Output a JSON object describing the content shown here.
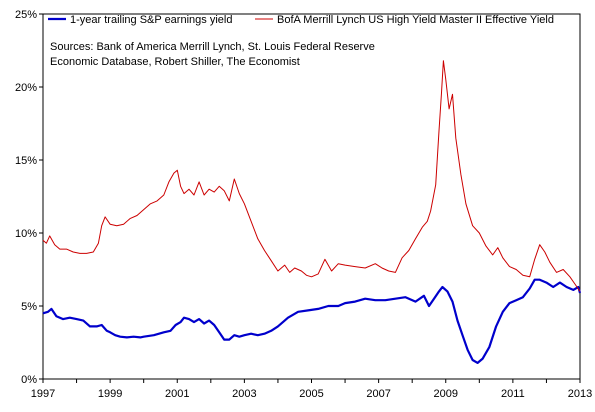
{
  "chart_data": {
    "type": "line",
    "title": "",
    "xlabel": "",
    "ylabel": "",
    "xlim": [
      1997,
      2013
    ],
    "ylim": [
      0,
      25
    ],
    "grid": false,
    "legend_position": "top",
    "x_ticks": [
      "1997",
      "1999",
      "2001",
      "2003",
      "2005",
      "2007",
      "2009",
      "2011",
      "2013"
    ],
    "y_ticks": [
      "0%",
      "5%",
      "10%",
      "15%",
      "20%",
      "25%"
    ],
    "annotation": [
      "Sources: Bank of America Merrill Lynch, St. Louis Federal Reserve",
      "Economic Database, Robert Shiller, The Economist"
    ],
    "series": [
      {
        "name": "1-year trailing S&P earnings yield",
        "color": "#0000cc",
        "points": [
          [
            1997.0,
            4.5
          ],
          [
            1997.15,
            4.6
          ],
          [
            1997.25,
            4.8
          ],
          [
            1997.4,
            4.3
          ],
          [
            1997.6,
            4.1
          ],
          [
            1997.8,
            4.2
          ],
          [
            1998.0,
            4.1
          ],
          [
            1998.2,
            4.0
          ],
          [
            1998.4,
            3.6
          ],
          [
            1998.6,
            3.6
          ],
          [
            1998.75,
            3.7
          ],
          [
            1998.9,
            3.3
          ],
          [
            1999.0,
            3.2
          ],
          [
            1999.15,
            3.0
          ],
          [
            1999.3,
            2.9
          ],
          [
            1999.5,
            2.85
          ],
          [
            1999.7,
            2.9
          ],
          [
            1999.9,
            2.85
          ],
          [
            2000.0,
            2.9
          ],
          [
            2000.3,
            3.0
          ],
          [
            2000.6,
            3.2
          ],
          [
            2000.8,
            3.3
          ],
          [
            2000.95,
            3.7
          ],
          [
            2001.1,
            3.9
          ],
          [
            2001.2,
            4.2
          ],
          [
            2001.35,
            4.1
          ],
          [
            2001.5,
            3.9
          ],
          [
            2001.65,
            4.1
          ],
          [
            2001.8,
            3.8
          ],
          [
            2001.95,
            4.0
          ],
          [
            2002.1,
            3.7
          ],
          [
            2002.25,
            3.2
          ],
          [
            2002.4,
            2.7
          ],
          [
            2002.55,
            2.7
          ],
          [
            2002.7,
            3.0
          ],
          [
            2002.85,
            2.9
          ],
          [
            2003.0,
            3.0
          ],
          [
            2003.2,
            3.1
          ],
          [
            2003.4,
            3.0
          ],
          [
            2003.6,
            3.1
          ],
          [
            2003.8,
            3.3
          ],
          [
            2004.0,
            3.6
          ],
          [
            2004.3,
            4.2
          ],
          [
            2004.6,
            4.6
          ],
          [
            2004.9,
            4.7
          ],
          [
            2005.2,
            4.8
          ],
          [
            2005.5,
            5.0
          ],
          [
            2005.8,
            5.0
          ],
          [
            2006.0,
            5.2
          ],
          [
            2006.3,
            5.3
          ],
          [
            2006.6,
            5.5
          ],
          [
            2006.9,
            5.4
          ],
          [
            2007.2,
            5.4
          ],
          [
            2007.5,
            5.5
          ],
          [
            2007.8,
            5.6
          ],
          [
            2008.1,
            5.3
          ],
          [
            2008.35,
            5.7
          ],
          [
            2008.5,
            5.0
          ],
          [
            2008.65,
            5.5
          ],
          [
            2008.8,
            6.0
          ],
          [
            2008.9,
            6.3
          ],
          [
            2009.05,
            6.0
          ],
          [
            2009.2,
            5.3
          ],
          [
            2009.35,
            4.0
          ],
          [
            2009.5,
            3.0
          ],
          [
            2009.65,
            2.0
          ],
          [
            2009.8,
            1.3
          ],
          [
            2009.95,
            1.1
          ],
          [
            2010.1,
            1.4
          ],
          [
            2010.3,
            2.2
          ],
          [
            2010.5,
            3.6
          ],
          [
            2010.7,
            4.6
          ],
          [
            2010.9,
            5.2
          ],
          [
            2011.1,
            5.4
          ],
          [
            2011.3,
            5.6
          ],
          [
            2011.5,
            6.2
          ],
          [
            2011.65,
            6.8
          ],
          [
            2011.8,
            6.8
          ],
          [
            2012.0,
            6.6
          ],
          [
            2012.2,
            6.3
          ],
          [
            2012.4,
            6.6
          ],
          [
            2012.6,
            6.3
          ],
          [
            2012.8,
            6.1
          ],
          [
            2012.95,
            6.3
          ],
          [
            2013.0,
            5.9
          ]
        ]
      },
      {
        "name": "BofA Merrill Lynch US High Yield Master II Effective Yield",
        "color": "#cc0000",
        "points": [
          [
            1997.0,
            9.5
          ],
          [
            1997.1,
            9.3
          ],
          [
            1997.2,
            9.8
          ],
          [
            1997.35,
            9.2
          ],
          [
            1997.5,
            8.9
          ],
          [
            1997.7,
            8.9
          ],
          [
            1997.9,
            8.7
          ],
          [
            1998.1,
            8.6
          ],
          [
            1998.3,
            8.6
          ],
          [
            1998.5,
            8.7
          ],
          [
            1998.65,
            9.3
          ],
          [
            1998.75,
            10.5
          ],
          [
            1998.85,
            11.1
          ],
          [
            1999.0,
            10.6
          ],
          [
            1999.2,
            10.5
          ],
          [
            1999.4,
            10.6
          ],
          [
            1999.6,
            11.0
          ],
          [
            1999.8,
            11.2
          ],
          [
            2000.0,
            11.6
          ],
          [
            2000.2,
            12.0
          ],
          [
            2000.4,
            12.2
          ],
          [
            2000.6,
            12.6
          ],
          [
            2000.75,
            13.5
          ],
          [
            2000.9,
            14.1
          ],
          [
            2001.0,
            14.3
          ],
          [
            2001.1,
            13.2
          ],
          [
            2001.2,
            12.7
          ],
          [
            2001.35,
            13.0
          ],
          [
            2001.5,
            12.6
          ],
          [
            2001.65,
            13.5
          ],
          [
            2001.8,
            12.6
          ],
          [
            2001.95,
            13.0
          ],
          [
            2002.1,
            12.8
          ],
          [
            2002.25,
            13.2
          ],
          [
            2002.4,
            12.9
          ],
          [
            2002.55,
            12.2
          ],
          [
            2002.7,
            13.7
          ],
          [
            2002.85,
            12.7
          ],
          [
            2003.0,
            12.0
          ],
          [
            2003.2,
            10.8
          ],
          [
            2003.4,
            9.6
          ],
          [
            2003.6,
            8.8
          ],
          [
            2003.8,
            8.1
          ],
          [
            2004.0,
            7.4
          ],
          [
            2004.2,
            7.8
          ],
          [
            2004.35,
            7.3
          ],
          [
            2004.5,
            7.6
          ],
          [
            2004.7,
            7.4
          ],
          [
            2004.85,
            7.1
          ],
          [
            2005.0,
            7.0
          ],
          [
            2005.2,
            7.2
          ],
          [
            2005.4,
            8.2
          ],
          [
            2005.6,
            7.4
          ],
          [
            2005.8,
            7.9
          ],
          [
            2006.0,
            7.8
          ],
          [
            2006.3,
            7.7
          ],
          [
            2006.6,
            7.6
          ],
          [
            2006.9,
            7.9
          ],
          [
            2007.1,
            7.6
          ],
          [
            2007.3,
            7.4
          ],
          [
            2007.5,
            7.3
          ],
          [
            2007.7,
            8.3
          ],
          [
            2007.9,
            8.8
          ],
          [
            2008.1,
            9.6
          ],
          [
            2008.3,
            10.4
          ],
          [
            2008.45,
            10.8
          ],
          [
            2008.55,
            11.5
          ],
          [
            2008.7,
            13.3
          ],
          [
            2008.8,
            17.0
          ],
          [
            2008.87,
            19.5
          ],
          [
            2008.93,
            21.8
          ],
          [
            2009.0,
            20.5
          ],
          [
            2009.1,
            18.5
          ],
          [
            2009.2,
            19.5
          ],
          [
            2009.3,
            16.5
          ],
          [
            2009.45,
            14.0
          ],
          [
            2009.6,
            12.0
          ],
          [
            2009.8,
            10.5
          ],
          [
            2010.0,
            10.0
          ],
          [
            2010.2,
            9.1
          ],
          [
            2010.4,
            8.5
          ],
          [
            2010.55,
            9.0
          ],
          [
            2010.7,
            8.3
          ],
          [
            2010.9,
            7.7
          ],
          [
            2011.1,
            7.5
          ],
          [
            2011.3,
            7.1
          ],
          [
            2011.5,
            7.0
          ],
          [
            2011.65,
            8.2
          ],
          [
            2011.8,
            9.2
          ],
          [
            2011.95,
            8.7
          ],
          [
            2012.1,
            8.0
          ],
          [
            2012.3,
            7.3
          ],
          [
            2012.5,
            7.5
          ],
          [
            2012.7,
            7.0
          ],
          [
            2012.85,
            6.5
          ],
          [
            2013.0,
            6.0
          ]
        ]
      }
    ]
  }
}
